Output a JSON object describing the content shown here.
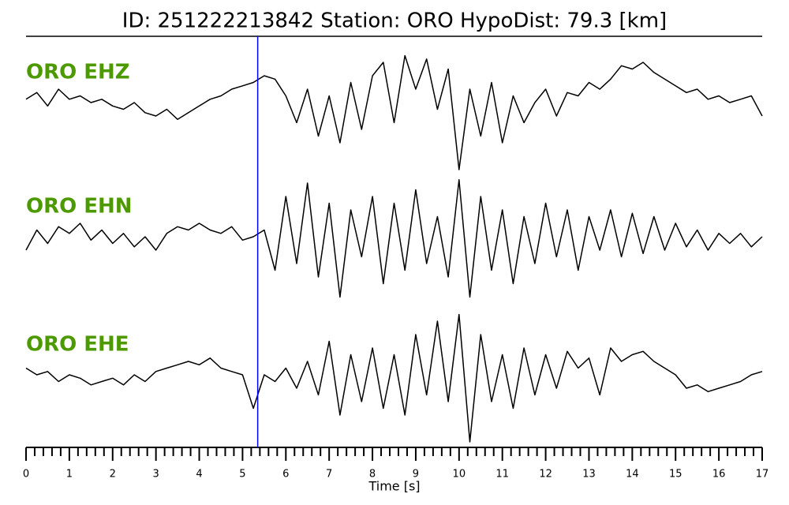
{
  "chart_data": {
    "type": "line",
    "title": "ID: 251222213842   Station: ORO   HypoDist:    79.3 [km]",
    "xlabel": "Time [s]",
    "xlim": [
      0,
      17
    ],
    "xticks": [
      0,
      1,
      2,
      3,
      4,
      5,
      6,
      7,
      8,
      9,
      10,
      11,
      12,
      13,
      14,
      15,
      16,
      17
    ],
    "minor_ticks_per_major": 5,
    "ylim": [
      -1,
      1
    ],
    "label_color": "#4c9a00",
    "vlines": [
      {
        "x": 5.35,
        "color": "#0000ff"
      }
    ],
    "x": [
      0,
      0.25,
      0.5,
      0.75,
      1,
      1.25,
      1.5,
      1.75,
      2,
      2.25,
      2.5,
      2.75,
      3,
      3.25,
      3.5,
      3.75,
      4,
      4.25,
      4.5,
      4.75,
      5,
      5.25,
      5.5,
      5.75,
      6,
      6.25,
      6.5,
      6.75,
      7,
      7.25,
      7.5,
      7.75,
      8,
      8.25,
      8.5,
      8.75,
      9,
      9.25,
      9.5,
      9.75,
      10,
      10.25,
      10.5,
      10.75,
      11,
      11.25,
      11.5,
      11.75,
      12,
      12.25,
      12.5,
      12.75,
      13,
      13.25,
      13.5,
      13.75,
      14,
      14.25,
      14.5,
      14.75,
      15,
      15.25,
      15.5,
      15.75,
      16,
      16.25,
      16.5,
      16.75,
      17
    ],
    "series": [
      {
        "name": "ORO EHZ",
        "color": "#000000",
        "values": [
          0.05,
          0.15,
          -0.05,
          0.2,
          0.05,
          0.1,
          0.0,
          0.05,
          -0.05,
          -0.1,
          0.0,
          -0.15,
          -0.2,
          -0.1,
          -0.25,
          -0.15,
          -0.05,
          0.05,
          0.1,
          0.2,
          0.25,
          0.3,
          0.4,
          0.35,
          0.1,
          -0.3,
          0.2,
          -0.5,
          0.1,
          -0.6,
          0.3,
          -0.4,
          0.4,
          0.6,
          -0.3,
          0.7,
          0.2,
          0.65,
          -0.1,
          0.5,
          -1.0,
          0.2,
          -0.5,
          0.3,
          -0.6,
          0.1,
          -0.3,
          0.0,
          0.2,
          -0.2,
          0.15,
          0.1,
          0.3,
          0.2,
          0.35,
          0.55,
          0.5,
          0.6,
          0.45,
          0.35,
          0.25,
          0.15,
          0.2,
          0.05,
          0.1,
          0.0,
          0.05,
          0.1,
          -0.2
        ]
      },
      {
        "name": "ORO EHN",
        "color": "#000000",
        "values": [
          -0.2,
          0.1,
          -0.1,
          0.15,
          0.05,
          0.2,
          -0.05,
          0.1,
          -0.1,
          0.05,
          -0.15,
          0.0,
          -0.2,
          0.05,
          0.15,
          0.1,
          0.2,
          0.1,
          0.05,
          0.15,
          -0.05,
          0.0,
          0.1,
          -0.5,
          0.6,
          -0.4,
          0.8,
          -0.6,
          0.5,
          -0.9,
          0.4,
          -0.3,
          0.6,
          -0.7,
          0.5,
          -0.5,
          0.7,
          -0.4,
          0.3,
          -0.6,
          0.85,
          -0.9,
          0.6,
          -0.5,
          0.4,
          -0.7,
          0.3,
          -0.4,
          0.5,
          -0.3,
          0.4,
          -0.5,
          0.3,
          -0.2,
          0.4,
          -0.3,
          0.35,
          -0.25,
          0.3,
          -0.2,
          0.2,
          -0.15,
          0.1,
          -0.2,
          0.05,
          -0.1,
          0.05,
          -0.15,
          0.0
        ]
      },
      {
        "name": "ORO EHE",
        "color": "#000000",
        "values": [
          0.1,
          0.0,
          0.05,
          -0.1,
          0.0,
          -0.05,
          -0.15,
          -0.1,
          -0.05,
          -0.15,
          0.0,
          -0.1,
          0.05,
          0.1,
          0.15,
          0.2,
          0.15,
          0.25,
          0.1,
          0.05,
          0.0,
          -0.5,
          0.0,
          -0.1,
          0.1,
          -0.2,
          0.2,
          -0.3,
          0.5,
          -0.6,
          0.3,
          -0.4,
          0.4,
          -0.5,
          0.3,
          -0.6,
          0.6,
          -0.3,
          0.8,
          -0.4,
          0.9,
          -1.0,
          0.6,
          -0.4,
          0.3,
          -0.5,
          0.4,
          -0.3,
          0.3,
          -0.2,
          0.35,
          0.1,
          0.25,
          -0.3,
          0.4,
          0.2,
          0.3,
          0.35,
          0.2,
          0.1,
          0.0,
          -0.2,
          -0.15,
          -0.25,
          -0.2,
          -0.15,
          -0.1,
          0.0,
          0.05
        ]
      }
    ]
  }
}
